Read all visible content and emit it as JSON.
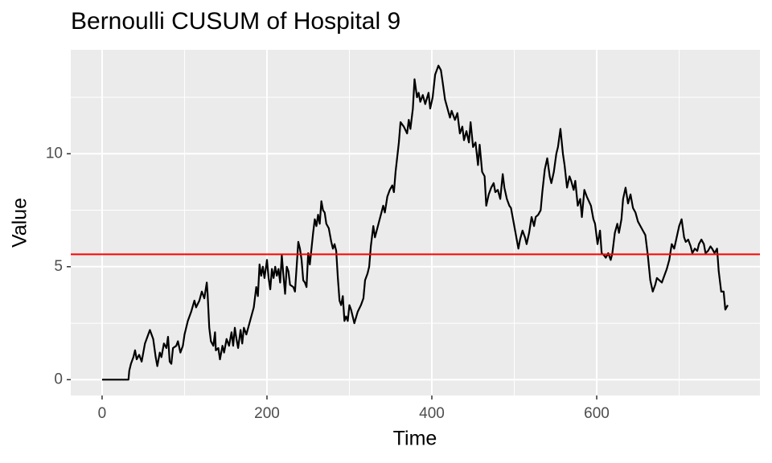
{
  "chart_data": {
    "type": "line",
    "title": "Bernoulli CUSUM of Hospital 9",
    "xlabel": "Time",
    "ylabel": "Value",
    "x": [
      0,
      32,
      33,
      35,
      38,
      40,
      42,
      45,
      48,
      52,
      56,
      58,
      62,
      65,
      67,
      70,
      72,
      75,
      78,
      80,
      82,
      84,
      86,
      90,
      92,
      95,
      98,
      100,
      104,
      108,
      112,
      114,
      118,
      121,
      124,
      127,
      128,
      130,
      132,
      135,
      137,
      138,
      141,
      143,
      146,
      148,
      151,
      154,
      157,
      159,
      161,
      163,
      165,
      168,
      170,
      172,
      175,
      178,
      181,
      184,
      187,
      189,
      191,
      193,
      195,
      197,
      200,
      202,
      204,
      206,
      208,
      210,
      212,
      214,
      216,
      218,
      220,
      222,
      224,
      226,
      228,
      232,
      234,
      236,
      238,
      240,
      242,
      244,
      246,
      248,
      250,
      252,
      254,
      256,
      258,
      260,
      262,
      264,
      266,
      268,
      270,
      272,
      275,
      278,
      280,
      282,
      284,
      286,
      288,
      290,
      292,
      294,
      296,
      298,
      300,
      302,
      306,
      310,
      314,
      317,
      319,
      322,
      324,
      326,
      329,
      331,
      336,
      341,
      343,
      346,
      349,
      352,
      354,
      356,
      360,
      362,
      366,
      370,
      372,
      374,
      377,
      379,
      382,
      384,
      386,
      389,
      392,
      396,
      398,
      401,
      404,
      408,
      411,
      413,
      416,
      419,
      422,
      424,
      428,
      431,
      434,
      437,
      439,
      442,
      445,
      447,
      450,
      453,
      456,
      458,
      461,
      464,
      466,
      469,
      472,
      475,
      477,
      480,
      483,
      486,
      488,
      491,
      494,
      496,
      499,
      502,
      505,
      507,
      510,
      513,
      515,
      518,
      521,
      524,
      526,
      529,
      532,
      534,
      537,
      540,
      543,
      545,
      548,
      551,
      553,
      556,
      559,
      561,
      564,
      567,
      569,
      572,
      574,
      577,
      580,
      582,
      585,
      588,
      593,
      596,
      598,
      601,
      604,
      606,
      609,
      611,
      614,
      617,
      619,
      622,
      625,
      627,
      630,
      632,
      635,
      638,
      641,
      644,
      647,
      650,
      653,
      656,
      659,
      662,
      665,
      668,
      671,
      673,
      676,
      679,
      682,
      685,
      688,
      691,
      694,
      697,
      700,
      703,
      706,
      708,
      711,
      714,
      716,
      719,
      722,
      724,
      727,
      730,
      732,
      735,
      738,
      740,
      743,
      746,
      748,
      751,
      754,
      756,
      759
    ],
    "values": [
      0,
      0,
      0.4,
      0.7,
      1.0,
      1.3,
      0.9,
      1.1,
      0.8,
      1.6,
      2.0,
      2.2,
      1.8,
      1.0,
      0.6,
      1.2,
      1.0,
      1.6,
      1.4,
      1.9,
      0.8,
      0.7,
      1.4,
      1.5,
      1.7,
      1.2,
      1.5,
      2.0,
      2.6,
      3.0,
      3.5,
      3.2,
      3.5,
      3.9,
      3.6,
      4.3,
      3.8,
      2.3,
      1.7,
      1.5,
      2.1,
      1.3,
      1.4,
      0.9,
      1.5,
      1.2,
      1.8,
      1.5,
      2.1,
      1.5,
      2.3,
      1.8,
      1.4,
      2.2,
      1.6,
      2.3,
      2.0,
      2.4,
      2.8,
      3.2,
      4.1,
      3.7,
      5.1,
      4.6,
      5.0,
      4.5,
      5.3,
      4.5,
      4.0,
      4.9,
      4.5,
      5.0,
      4.6,
      4.9,
      4.3,
      5.5,
      4.6,
      3.8,
      5.0,
      4.8,
      4.2,
      4.1,
      3.9,
      5.0,
      6.1,
      5.8,
      5.3,
      4.4,
      4.3,
      4.1,
      5.6,
      5.1,
      5.8,
      6.5,
      7.1,
      6.8,
      7.3,
      6.9,
      7.9,
      7.5,
      7.4,
      6.9,
      6.7,
      6.1,
      5.8,
      6.0,
      5.7,
      4.5,
      3.5,
      3.3,
      3.7,
      2.6,
      2.8,
      2.6,
      3.3,
      3.1,
      2.5,
      3.0,
      3.3,
      3.6,
      4.4,
      4.7,
      5.0,
      5.9,
      6.8,
      6.3,
      7.0,
      7.7,
      7.4,
      8.1,
      8.4,
      8.6,
      8.3,
      9.2,
      10.5,
      11.4,
      11.2,
      10.9,
      11.5,
      11.1,
      12.0,
      13.3,
      12.5,
      12.7,
      12.3,
      12.6,
      12.2,
      12.7,
      12.0,
      12.5,
      13.5,
      13.9,
      13.7,
      13.2,
      12.4,
      12.0,
      11.6,
      11.9,
      11.5,
      11.8,
      10.9,
      11.2,
      10.6,
      11.0,
      10.5,
      11.4,
      10.3,
      10.5,
      9.5,
      10.4,
      9.2,
      9.0,
      7.7,
      8.2,
      8.5,
      8.7,
      8.3,
      8.4,
      8.0,
      9.1,
      8.5,
      8.0,
      7.7,
      7.6,
      7.0,
      6.4,
      5.8,
      6.2,
      6.6,
      6.3,
      6.0,
      6.5,
      7.2,
      6.8,
      7.2,
      7.3,
      7.5,
      8.3,
      9.3,
      9.8,
      9.0,
      8.7,
      9.2,
      10.0,
      10.3,
      11.1,
      10.0,
      9.5,
      8.5,
      9.0,
      8.8,
      8.4,
      8.8,
      7.7,
      8.0,
      7.2,
      8.4,
      8.1,
      7.7,
      7.1,
      6.9,
      6.0,
      6.6,
      5.6,
      5.5,
      5.4,
      5.6,
      5.3,
      5.6,
      6.5,
      6.9,
      6.5,
      7.1,
      8.0,
      8.5,
      7.8,
      8.2,
      7.6,
      7.4,
      7.0,
      6.8,
      6.6,
      6.4,
      5.5,
      4.4,
      3.9,
      4.2,
      4.5,
      4.4,
      4.3,
      4.6,
      4.9,
      5.3,
      6.0,
      5.8,
      6.3,
      6.8,
      7.1,
      6.3,
      6.1,
      6.2,
      5.9,
      5.6,
      5.8,
      5.7,
      6.0,
      6.2,
      6.0,
      5.6,
      5.7,
      5.9,
      5.8,
      5.6,
      5.8,
      4.8,
      3.9,
      3.9,
      3.1,
      3.3
    ],
    "color": "#000000",
    "hline": 5.55,
    "hline_color": "#ff0000",
    "xlim": [
      -38,
      798
    ],
    "ylim": [
      -0.7,
      14.6
    ],
    "xticks": [
      0,
      200,
      400,
      600
    ],
    "yticks": [
      0,
      5,
      10
    ],
    "xminor": [
      100,
      300,
      500,
      700
    ],
    "yminor": [
      2.5,
      7.5,
      12.5
    ],
    "grid": true
  }
}
